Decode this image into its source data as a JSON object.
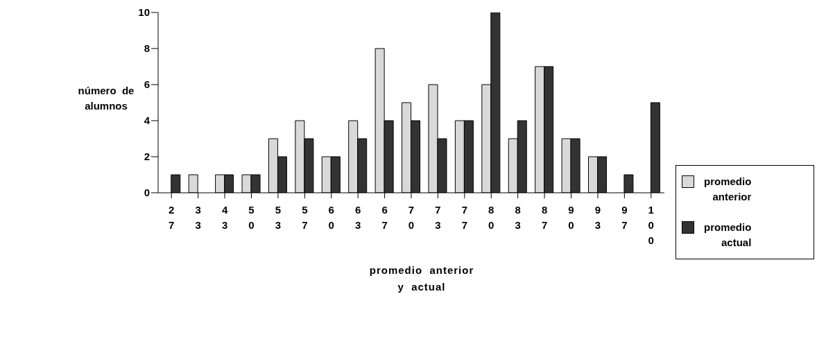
{
  "chart_data": {
    "type": "bar",
    "xlabel": "promedio  anterior\ny  actual",
    "ylabel": "número  de\nalumnos",
    "categories": [
      "27",
      "33",
      "43",
      "50",
      "53",
      "57",
      "60",
      "63",
      "67",
      "70",
      "73",
      "77",
      "80",
      "83",
      "87",
      "90",
      "93",
      "97",
      "100"
    ],
    "series": [
      {
        "name": "promedio\nanterior",
        "color": "#d9d9d9",
        "values": [
          0,
          1,
          1,
          1,
          3,
          4,
          2,
          4,
          8,
          5,
          6,
          4,
          6,
          3,
          7,
          3,
          2,
          0,
          0
        ]
      },
      {
        "name": "promedio\nactual",
        "color": "#333333",
        "values": [
          1,
          0,
          1,
          1,
          2,
          3,
          2,
          3,
          4,
          4,
          3,
          4,
          10,
          4,
          7,
          3,
          2,
          1,
          5
        ]
      }
    ],
    "ylim": [
      0,
      10
    ],
    "yticks": [
      0,
      2,
      4,
      6,
      8,
      10
    ],
    "grid": false,
    "legend": "right"
  }
}
